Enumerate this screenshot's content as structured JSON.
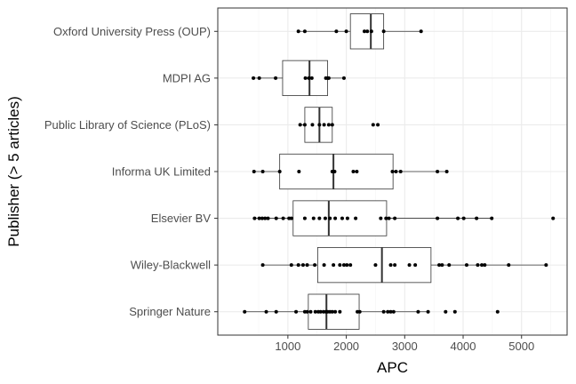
{
  "chart_data": {
    "type": "boxplot",
    "xlabel": "APC",
    "ylabel": "Publisher (> 5 articles)",
    "xlim": [
      -200,
      5780
    ],
    "x_ticks": [
      1000,
      2000,
      3000,
      4000,
      5000
    ],
    "x_minor_ticks": [
      500,
      1500,
      2500,
      3500,
      4500,
      5500
    ],
    "grid": true,
    "legend": "none",
    "colors": {
      "box": "#333333",
      "point": "#000000",
      "grid_major": "#ebebeb",
      "grid_minor": "#f4f4f4",
      "panel_border": "#333333"
    },
    "categories": [
      "Oxford University Press (OUP)",
      "MDPI AG",
      "Public Library of Science (PLoS)",
      "Informa UK Limited",
      "Elsevier BV",
      "Wiley-Blackwell",
      "Springer Nature"
    ],
    "boxes": [
      {
        "category": "Oxford University Press (OUP)",
        "whisker_low": 1180,
        "q1": 2070,
        "median": 2420,
        "q3": 2640,
        "whisker_high": 3280,
        "points": [
          1180,
          1290,
          1830,
          2000,
          2310,
          2360,
          2430,
          2640,
          3280
        ]
      },
      {
        "category": "MDPI AG",
        "whisker_low": 410,
        "q1": 910,
        "median": 1370,
        "q3": 1680,
        "whisker_high": 1960,
        "points": [
          410,
          510,
          790,
          1300,
          1360,
          1410,
          1650,
          1680,
          1700,
          1960
        ]
      },
      {
        "category": "Public Library of Science (PLoS)",
        "whisker_low": 1210,
        "q1": 1290,
        "median": 1540,
        "q3": 1760,
        "whisker_high": 1760,
        "points": [
          1210,
          1290,
          1420,
          1540,
          1620,
          1700,
          1760,
          2460,
          2540
        ]
      },
      {
        "category": "Informa UK Limited",
        "whisker_low": 420,
        "q1": 860,
        "median": 1780,
        "q3": 2800,
        "whisker_high": 3720,
        "points": [
          420,
          570,
          860,
          1190,
          1760,
          1800,
          2120,
          2180,
          2790,
          2850,
          2930,
          3560,
          3720
        ]
      },
      {
        "category": "Elsevier BV",
        "whisker_low": 430,
        "q1": 1090,
        "median": 1700,
        "q3": 2690,
        "whisker_high": 4490,
        "points": [
          430,
          510,
          560,
          610,
          660,
          800,
          920,
          1020,
          1060,
          1290,
          1440,
          1540,
          1640,
          1720,
          1810,
          1930,
          2020,
          2160,
          2590,
          2680,
          2730,
          2830,
          3560,
          3910,
          4010,
          4230,
          4490,
          5540
        ]
      },
      {
        "category": "Wiley-Blackwell",
        "whisker_low": 570,
        "q1": 1510,
        "median": 2610,
        "q3": 3450,
        "whisker_high": 5420,
        "points": [
          570,
          1060,
          1180,
          1260,
          1330,
          1460,
          1620,
          1780,
          1890,
          1960,
          2010,
          2070,
          2500,
          2760,
          2830,
          3080,
          3180,
          3590,
          3640,
          3760,
          4060,
          4250,
          4320,
          4370,
          4780,
          5420
        ]
      },
      {
        "category": "Springer Nature",
        "whisker_low": 260,
        "q1": 1350,
        "median": 1660,
        "q3": 2220,
        "whisker_high": 3400,
        "points": [
          260,
          630,
          800,
          1140,
          1290,
          1330,
          1390,
          1470,
          1520,
          1560,
          1610,
          1650,
          1680,
          1720,
          1760,
          1810,
          1890,
          2190,
          2230,
          2640,
          2710,
          2760,
          2810,
          3230,
          3400,
          3700,
          3860,
          4590
        ]
      }
    ]
  }
}
